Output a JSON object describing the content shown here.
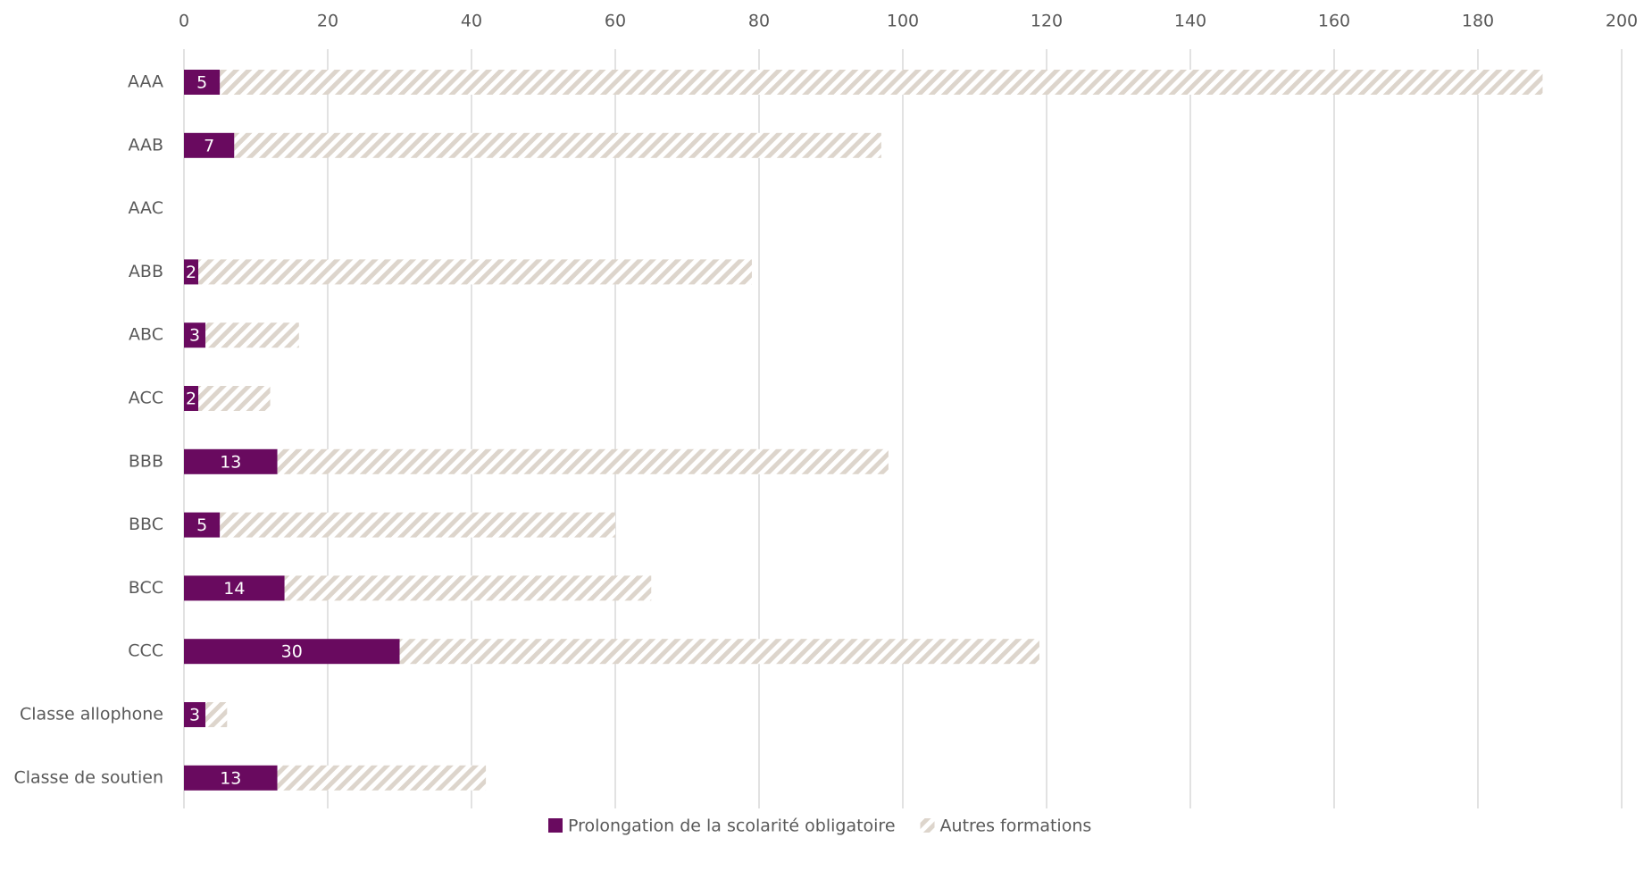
{
  "chart_data": {
    "type": "stacked-bar-horizontal",
    "categories": [
      "AAA",
      "AAB",
      "AAC",
      "ABB",
      "ABC",
      "ACC",
      "BBB",
      "BBC",
      "BCC",
      "CCC",
      "Classe allophone",
      "Classe de soutien"
    ],
    "series": [
      {
        "name": "Prolongation de la scolarité obligatoire",
        "color": "#690a5f",
        "values": [
          5,
          7,
          null,
          2,
          3,
          2,
          13,
          5,
          14,
          30,
          3,
          13
        ]
      },
      {
        "name": "Autres formations",
        "color": "#ddd5cc",
        "pattern": "hatch",
        "values": [
          184,
          90,
          null,
          77,
          13,
          10,
          85,
          55,
          51,
          89,
          3,
          29
        ]
      }
    ],
    "xlim": [
      0,
      200
    ],
    "xticks": [
      0,
      20,
      40,
      60,
      80,
      100,
      120,
      140,
      160,
      180,
      200
    ],
    "grid": true,
    "legend": "bottom",
    "data_labels": [
      true,
      false
    ]
  }
}
